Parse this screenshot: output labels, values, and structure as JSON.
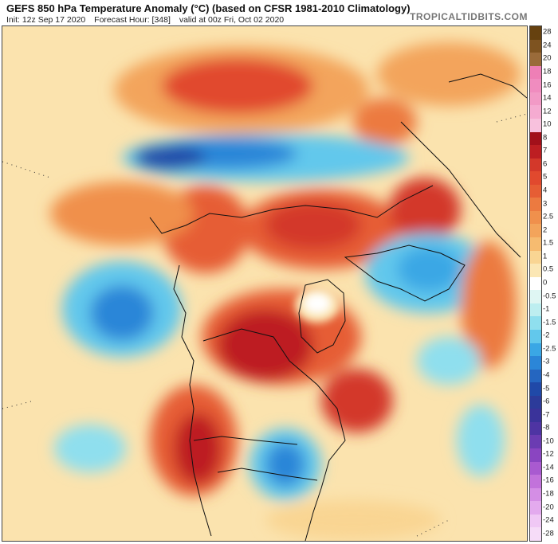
{
  "header": {
    "title": "GEFS 850 hPa Temperature Anomaly (°C) (based on CFSR 1981-2010 Climatology)",
    "init": "Init: 12z Sep 17 2020",
    "forecast_hour": "Forecast Hour: [348]",
    "valid": "valid at 00z Fri, Oct 02 2020",
    "brand": "TROPICALTIDBITS.COM"
  },
  "colorbar": {
    "levels": [
      {
        "label": "28",
        "color": "#66410f"
      },
      {
        "label": "24",
        "color": "#7e5320"
      },
      {
        "label": "20",
        "color": "#9a6b3a"
      },
      {
        "label": "18",
        "color": "#ee7fb6"
      },
      {
        "label": "16",
        "color": "#f08cbf"
      },
      {
        "label": "14",
        "color": "#f29ac6"
      },
      {
        "label": "12",
        "color": "#f5abd1"
      },
      {
        "label": "10",
        "color": "#f8c1dd"
      },
      {
        "label": "8",
        "color": "#a2101a"
      },
      {
        "label": "7",
        "color": "#bd1e22"
      },
      {
        "label": "6",
        "color": "#d3382a"
      },
      {
        "label": "5",
        "color": "#e1492e"
      },
      {
        "label": "4",
        "color": "#e65d34"
      },
      {
        "label": "3",
        "color": "#ec7a40"
      },
      {
        "label": "2.5",
        "color": "#f0904c"
      },
      {
        "label": "2",
        "color": "#f3a45b"
      },
      {
        "label": "1.5",
        "color": "#f6bb70"
      },
      {
        "label": "1",
        "color": "#f9d593"
      },
      {
        "label": "0.5",
        "color": "#fbe7b5"
      },
      {
        "label": "0",
        "color": "#ffffff"
      },
      {
        "label": "-0.5",
        "color": "#dff6f3"
      },
      {
        "label": "-1",
        "color": "#bdeef0"
      },
      {
        "label": "-1.5",
        "color": "#8fdfee"
      },
      {
        "label": "-2",
        "color": "#62c8ec"
      },
      {
        "label": "-2.5",
        "color": "#3aa7e5"
      },
      {
        "label": "-3",
        "color": "#2b86d8"
      },
      {
        "label": "-4",
        "color": "#2566c0"
      },
      {
        "label": "-5",
        "color": "#2049a8"
      },
      {
        "label": "-6",
        "color": "#2c3b9a"
      },
      {
        "label": "-7",
        "color": "#3a339a"
      },
      {
        "label": "-8",
        "color": "#4e34a3"
      },
      {
        "label": "-10",
        "color": "#6b3cb2"
      },
      {
        "label": "-12",
        "color": "#8a45c1"
      },
      {
        "label": "-14",
        "color": "#a95ad0"
      },
      {
        "label": "-16",
        "color": "#c272db"
      },
      {
        "label": "-18",
        "color": "#d48ee5"
      },
      {
        "label": "-20",
        "color": "#e3aaee"
      },
      {
        "label": "-24",
        "color": "#f0c8f5"
      },
      {
        "label": "-28",
        "color": "#f6dcf8"
      }
    ]
  }
}
